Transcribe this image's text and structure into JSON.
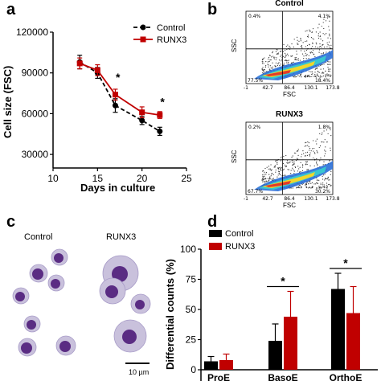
{
  "panels": {
    "a": "a",
    "b": "b",
    "c": "c",
    "d": "d"
  },
  "chart_data": [
    {
      "type": "line",
      "xlabel": "Days in culture",
      "ylabel": "Cell size (FSC)",
      "xlim": [
        10,
        25
      ],
      "ylim": [
        20000,
        120000
      ],
      "xticks": [
        "10",
        "15",
        "20",
        "25"
      ],
      "yticks": [
        "30000",
        "60000",
        "90000",
        "120000"
      ],
      "legend_position": "top-right",
      "x": [
        13,
        15,
        17,
        20,
        22
      ],
      "series": [
        {
          "name": "Control",
          "color": "#000000",
          "style": "dashed",
          "marker": "circle",
          "values": [
            98000,
            90000,
            66000,
            55000,
            47000
          ],
          "errors": [
            5000,
            4000,
            5000,
            3000,
            3000
          ]
        },
        {
          "name": "RUNX3",
          "color": "#c00000",
          "style": "solid",
          "marker": "square",
          "values": [
            97000,
            92000,
            74000,
            61000,
            59000
          ],
          "errors": [
            4000,
            4000,
            4000,
            4000,
            2500
          ]
        }
      ],
      "annotations": [
        {
          "text": "*",
          "x": 17.3,
          "y": 84000
        },
        {
          "text": "*",
          "x": 22.3,
          "y": 66000
        }
      ]
    },
    {
      "type": "scatter",
      "title": "Control",
      "xlabel": "FSC",
      "ylabel": "SSC",
      "xticks": [
        "-1",
        "42.7",
        "86.4",
        "130.1",
        "173.8"
      ],
      "quadrants": {
        "top_left": "0.4%",
        "top_right": "4.1%",
        "bottom_left": "77.5%",
        "bottom_right": "18.4%"
      }
    },
    {
      "type": "scatter",
      "title": "RUNX3",
      "xlabel": "FSC",
      "ylabel": "SSC",
      "xticks": [
        "-1",
        "42.7",
        "86.4",
        "130.1",
        "173.8"
      ],
      "quadrants": {
        "top_left": "0.2%",
        "top_right": "1.8%",
        "bottom_left": "67.7%",
        "bottom_right": "30.2%"
      }
    },
    {
      "type": "bar",
      "ylabel": "Differential counts (%)",
      "ylim": [
        0,
        100
      ],
      "yticks": [
        "0",
        "25",
        "50",
        "75",
        "100"
      ],
      "categories": [
        "ProE",
        "BasoE",
        "OrthoE"
      ],
      "legend_position": "top-left",
      "series": [
        {
          "name": "Control",
          "color": "#000000",
          "values": [
            7,
            24,
            67
          ],
          "errors": [
            4,
            14,
            13
          ]
        },
        {
          "name": "RUNX3",
          "color": "#c00000",
          "values": [
            8,
            44,
            47
          ],
          "errors": [
            5,
            21,
            22
          ]
        }
      ],
      "annotations": [
        {
          "text": "*",
          "category": "BasoE"
        },
        {
          "text": "*",
          "category": "OrthoE"
        }
      ]
    }
  ],
  "micrograph": {
    "control_label": "Control",
    "runx3_label": "RUNX3",
    "scale_bar": "10 µm"
  }
}
